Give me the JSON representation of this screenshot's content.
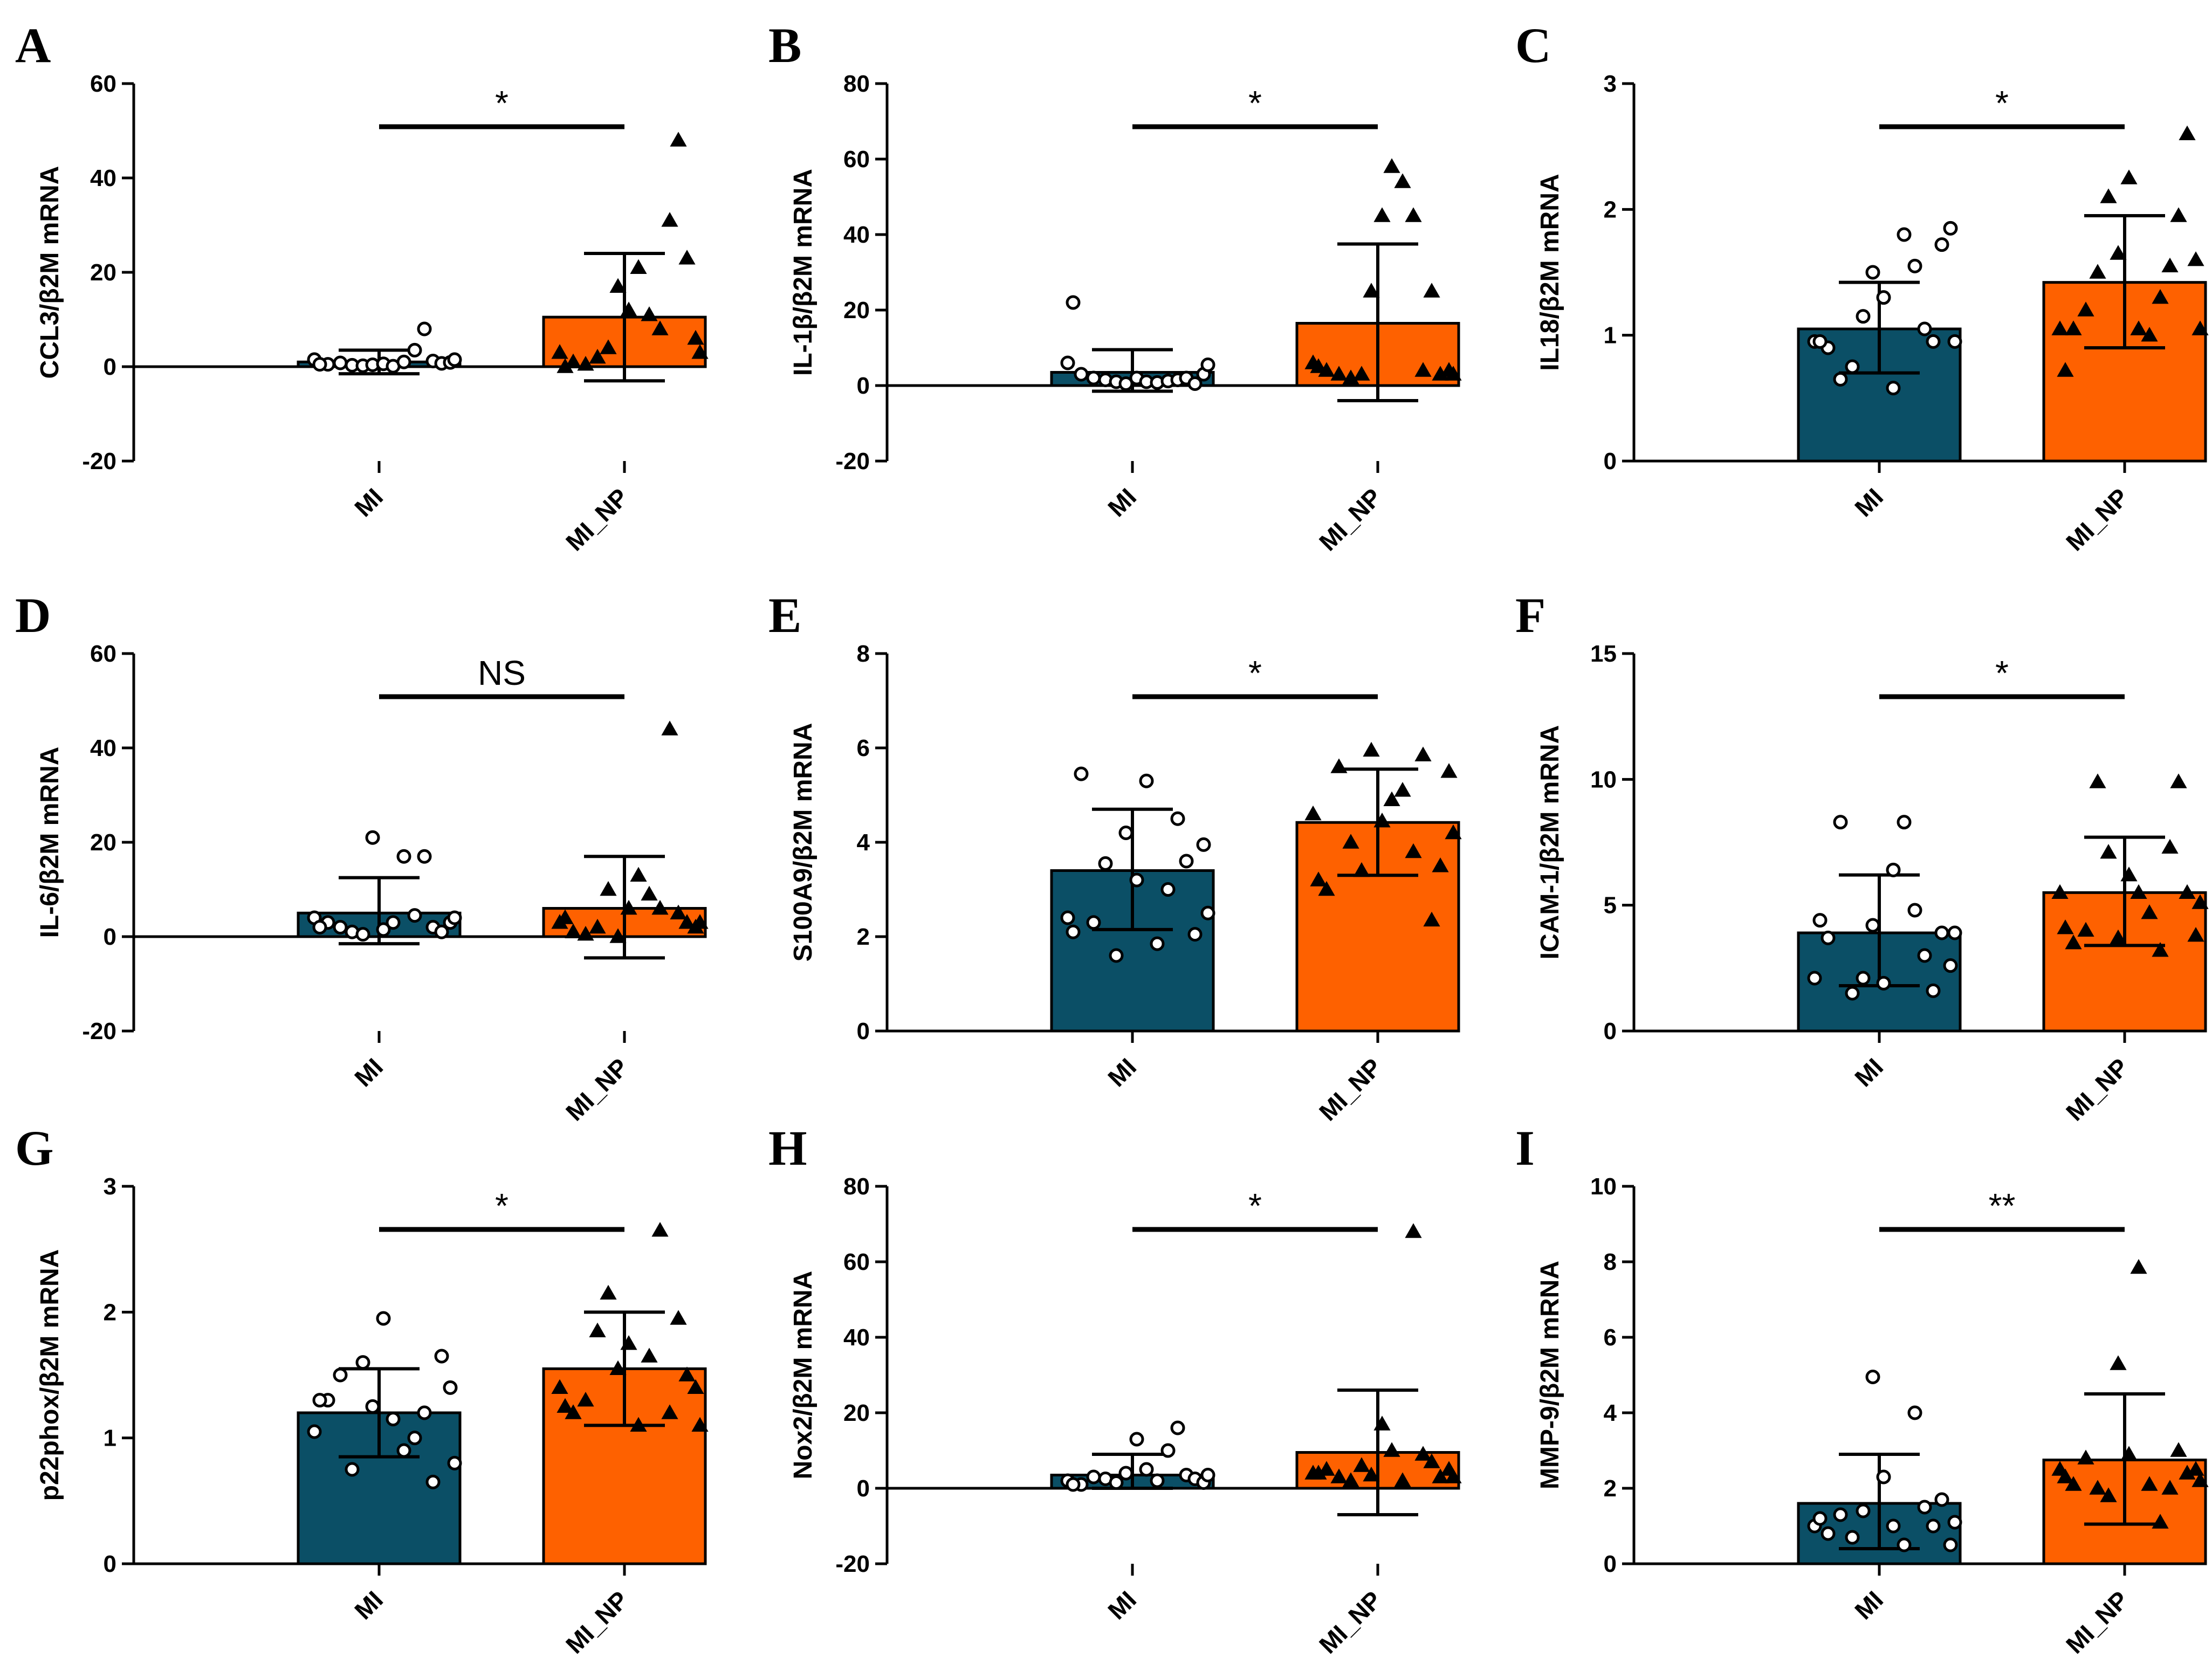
{
  "colors": {
    "MI": "#0b4f66",
    "MI_NP": "#fe6100",
    "axis": "#000000"
  },
  "marker_shapes": {
    "MI": "open-circle",
    "MI_NP": "filled-triangle"
  },
  "chart_data": [
    {
      "panel": "A",
      "type": "bar",
      "ylabel": "CCL3/β2M mRNA",
      "categories": [
        "MI",
        "MI_NP"
      ],
      "ylim": [
        -20,
        60
      ],
      "yticks": [
        -20,
        0,
        20,
        40,
        60
      ],
      "series": [
        {
          "name": "MI",
          "mean": 1.0,
          "err_low": -1.5,
          "err_high": 3.5,
          "points": [
            1.5,
            0.5,
            0.8,
            0.3,
            0.2,
            0.4,
            0.6,
            0.1,
            1.0,
            3.5,
            8.0,
            1.2,
            0.7,
            0.9,
            0.5,
            1.5
          ]
        },
        {
          "name": "MI_NP",
          "mean": 10.5,
          "err_low": -3.0,
          "err_high": 24.0,
          "points": [
            3.0,
            1.0,
            0.5,
            2.0,
            4.0,
            17.0,
            12.0,
            21.0,
            11.0,
            8.0,
            31.0,
            48.0,
            23.0,
            6.0,
            0.0,
            3.0
          ]
        }
      ],
      "significance": "*"
    },
    {
      "panel": "B",
      "type": "bar",
      "ylabel": "IL-1β/β2M mRNA",
      "categories": [
        "MI",
        "MI_NP"
      ],
      "ylim": [
        -20,
        80
      ],
      "yticks": [
        -20,
        0,
        20,
        40,
        60,
        80
      ],
      "series": [
        {
          "name": "MI",
          "mean": 3.5,
          "err_low": -1.5,
          "err_high": 9.5,
          "points": [
            6.0,
            3.0,
            2.0,
            1.5,
            1.0,
            0.5,
            2.0,
            1.0,
            0.8,
            1.2,
            1.5,
            2.0,
            0.5,
            3.0,
            22.0,
            5.5
          ]
        },
        {
          "name": "MI_NP",
          "mean": 16.5,
          "err_low": -4.0,
          "err_high": 37.5,
          "points": [
            6.0,
            4.0,
            3.0,
            2.0,
            3.0,
            25.0,
            45.0,
            58.0,
            54.0,
            45.0,
            4.0,
            25.0,
            3.0,
            4.0,
            5.0,
            3.0
          ]
        }
      ],
      "significance": "*"
    },
    {
      "panel": "C",
      "type": "bar",
      "ylabel": "IL18/β2M mRNA",
      "categories": [
        "MI",
        "MI_NP"
      ],
      "ylim": [
        0,
        3
      ],
      "yticks": [
        0,
        1,
        2,
        3
      ],
      "series": [
        {
          "name": "MI",
          "mean": 1.05,
          "err_low": 0.7,
          "err_high": 1.42,
          "points": [
            0.95,
            0.9,
            0.65,
            0.75,
            1.15,
            1.5,
            1.3,
            0.58,
            1.8,
            1.55,
            1.05,
            0.95,
            1.72,
            1.85,
            0.95,
            0.95
          ]
        },
        {
          "name": "MI_NP",
          "mean": 1.42,
          "err_low": 0.9,
          "err_high": 1.95,
          "points": [
            1.05,
            1.05,
            1.2,
            1.5,
            2.1,
            1.65,
            2.25,
            1.05,
            1.0,
            1.3,
            1.55,
            1.95,
            2.6,
            1.6,
            0.72,
            1.05
          ]
        }
      ],
      "significance": "*"
    },
    {
      "panel": "D",
      "type": "bar",
      "ylabel": "IL-6/β2M mRNA",
      "categories": [
        "MI",
        "MI_NP"
      ],
      "ylim": [
        -20,
        60
      ],
      "yticks": [
        -20,
        0,
        20,
        40,
        60
      ],
      "series": [
        {
          "name": "MI",
          "mean": 5.0,
          "err_low": -1.5,
          "err_high": 12.5,
          "points": [
            4.0,
            3.0,
            2.0,
            1.0,
            0.5,
            21.0,
            1.5,
            3.0,
            17.0,
            4.5,
            17.0,
            2.0,
            1.0,
            3.0,
            2.0,
            4.0
          ]
        },
        {
          "name": "MI_NP",
          "mean": 6.0,
          "err_low": -4.5,
          "err_high": 17.0,
          "points": [
            3.0,
            1.0,
            0.5,
            2.0,
            10.0,
            0.0,
            6.0,
            13.0,
            9.0,
            6.0,
            44.0,
            5.0,
            3.0,
            2.0,
            4.0,
            3.0
          ]
        }
      ],
      "significance": "NS"
    },
    {
      "panel": "E",
      "type": "bar",
      "ylabel": "S100A9/β2M mRNA",
      "categories": [
        "MI",
        "MI_NP"
      ],
      "ylim": [
        0,
        8
      ],
      "yticks": [
        0,
        2,
        4,
        6,
        8
      ],
      "series": [
        {
          "name": "MI",
          "mean": 3.4,
          "err_low": 2.15,
          "err_high": 4.7,
          "points": [
            2.4,
            5.45,
            2.3,
            3.55,
            1.6,
            4.2,
            3.2,
            5.3,
            1.85,
            3.0,
            4.5,
            3.6,
            2.05,
            3.95,
            2.1,
            2.5
          ]
        },
        {
          "name": "MI_NP",
          "mean": 4.42,
          "err_low": 3.3,
          "err_high": 5.55,
          "points": [
            4.6,
            3.0,
            5.6,
            4.0,
            3.4,
            5.95,
            4.45,
            4.9,
            5.1,
            3.8,
            5.85,
            2.35,
            3.5,
            5.5,
            3.2,
            4.2
          ]
        }
      ],
      "significance": "*"
    },
    {
      "panel": "F",
      "type": "bar",
      "ylabel": "ICAM-1/β2M mRNA",
      "categories": [
        "MI",
        "MI_NP"
      ],
      "ylim": [
        0,
        15
      ],
      "yticks": [
        0,
        5,
        10,
        15
      ],
      "series": [
        {
          "name": "MI",
          "mean": 3.9,
          "err_low": 1.8,
          "err_high": 6.2,
          "points": [
            2.1,
            3.7,
            8.3,
            1.5,
            2.1,
            4.2,
            1.9,
            6.4,
            8.3,
            4.8,
            3.0,
            1.6,
            3.9,
            2.6,
            4.4,
            3.9
          ]
        },
        {
          "name": "MI_NP",
          "mean": 5.5,
          "err_low": 3.4,
          "err_high": 7.7,
          "points": [
            5.5,
            3.5,
            4.0,
            9.9,
            7.1,
            3.7,
            6.2,
            5.5,
            4.7,
            3.2,
            7.3,
            9.9,
            5.5,
            3.8,
            4.1,
            5.1
          ]
        }
      ],
      "significance": "*"
    },
    {
      "panel": "G",
      "type": "bar",
      "ylabel": "p22phox/β2M mRNA",
      "categories": [
        "MI",
        "MI_NP"
      ],
      "ylim": [
        0,
        3
      ],
      "yticks": [
        0,
        1,
        2,
        3
      ],
      "series": [
        {
          "name": "MI",
          "mean": 1.2,
          "err_low": 0.85,
          "err_high": 1.55,
          "points": [
            1.05,
            1.3,
            1.5,
            0.75,
            1.6,
            1.25,
            1.95,
            1.15,
            0.9,
            1.0,
            1.2,
            0.65,
            1.65,
            1.4,
            1.3,
            0.8
          ]
        },
        {
          "name": "MI_NP",
          "mean": 1.55,
          "err_low": 1.1,
          "err_high": 2.0,
          "points": [
            1.4,
            1.2,
            1.3,
            1.85,
            2.15,
            1.55,
            1.75,
            1.1,
            1.65,
            2.65,
            1.2,
            1.95,
            1.5,
            1.4,
            1.25,
            1.1
          ]
        }
      ],
      "significance": "*"
    },
    {
      "panel": "H",
      "type": "bar",
      "ylabel": "Nox2/β2M mRNA",
      "categories": [
        "MI",
        "MI_NP"
      ],
      "ylim": [
        -20,
        80
      ],
      "yticks": [
        -20,
        0,
        20,
        40,
        60,
        80
      ],
      "series": [
        {
          "name": "MI",
          "mean": 3.5,
          "err_low": 0.0,
          "err_high": 9.0,
          "points": [
            2.0,
            1.0,
            3.0,
            2.5,
            1.5,
            4.0,
            13.0,
            5.0,
            2.0,
            10.0,
            16.0,
            3.5,
            2.5,
            1.5,
            1.0,
            3.5
          ]
        },
        {
          "name": "MI_NP",
          "mean": 9.5,
          "err_low": -7.0,
          "err_high": 26.0,
          "points": [
            4.0,
            5.0,
            3.0,
            2.0,
            6.0,
            3.5,
            17.0,
            10.0,
            2.0,
            68.0,
            9.0,
            7.0,
            3.0,
            5.0,
            4.0,
            3.0
          ]
        }
      ],
      "significance": "*"
    },
    {
      "panel": "I",
      "type": "bar",
      "ylabel": "MMP-9/β2M mRNA",
      "categories": [
        "MI",
        "MI_NP"
      ],
      "ylim": [
        0,
        10
      ],
      "yticks": [
        0,
        2,
        4,
        6,
        8,
        10
      ],
      "series": [
        {
          "name": "MI",
          "mean": 1.6,
          "err_low": 0.4,
          "err_high": 2.9,
          "points": [
            1.0,
            0.8,
            1.3,
            0.7,
            1.4,
            4.95,
            2.3,
            1.0,
            0.5,
            4.0,
            1.5,
            1.0,
            1.7,
            0.5,
            1.2,
            1.1
          ]
        },
        {
          "name": "MI_NP",
          "mean": 2.75,
          "err_low": 1.05,
          "err_high": 4.5,
          "points": [
            2.5,
            2.1,
            2.8,
            2.0,
            1.8,
            5.3,
            2.9,
            7.85,
            2.1,
            1.1,
            2.0,
            3.0,
            2.4,
            2.5,
            2.3,
            2.2
          ]
        }
      ],
      "significance": "**"
    }
  ]
}
